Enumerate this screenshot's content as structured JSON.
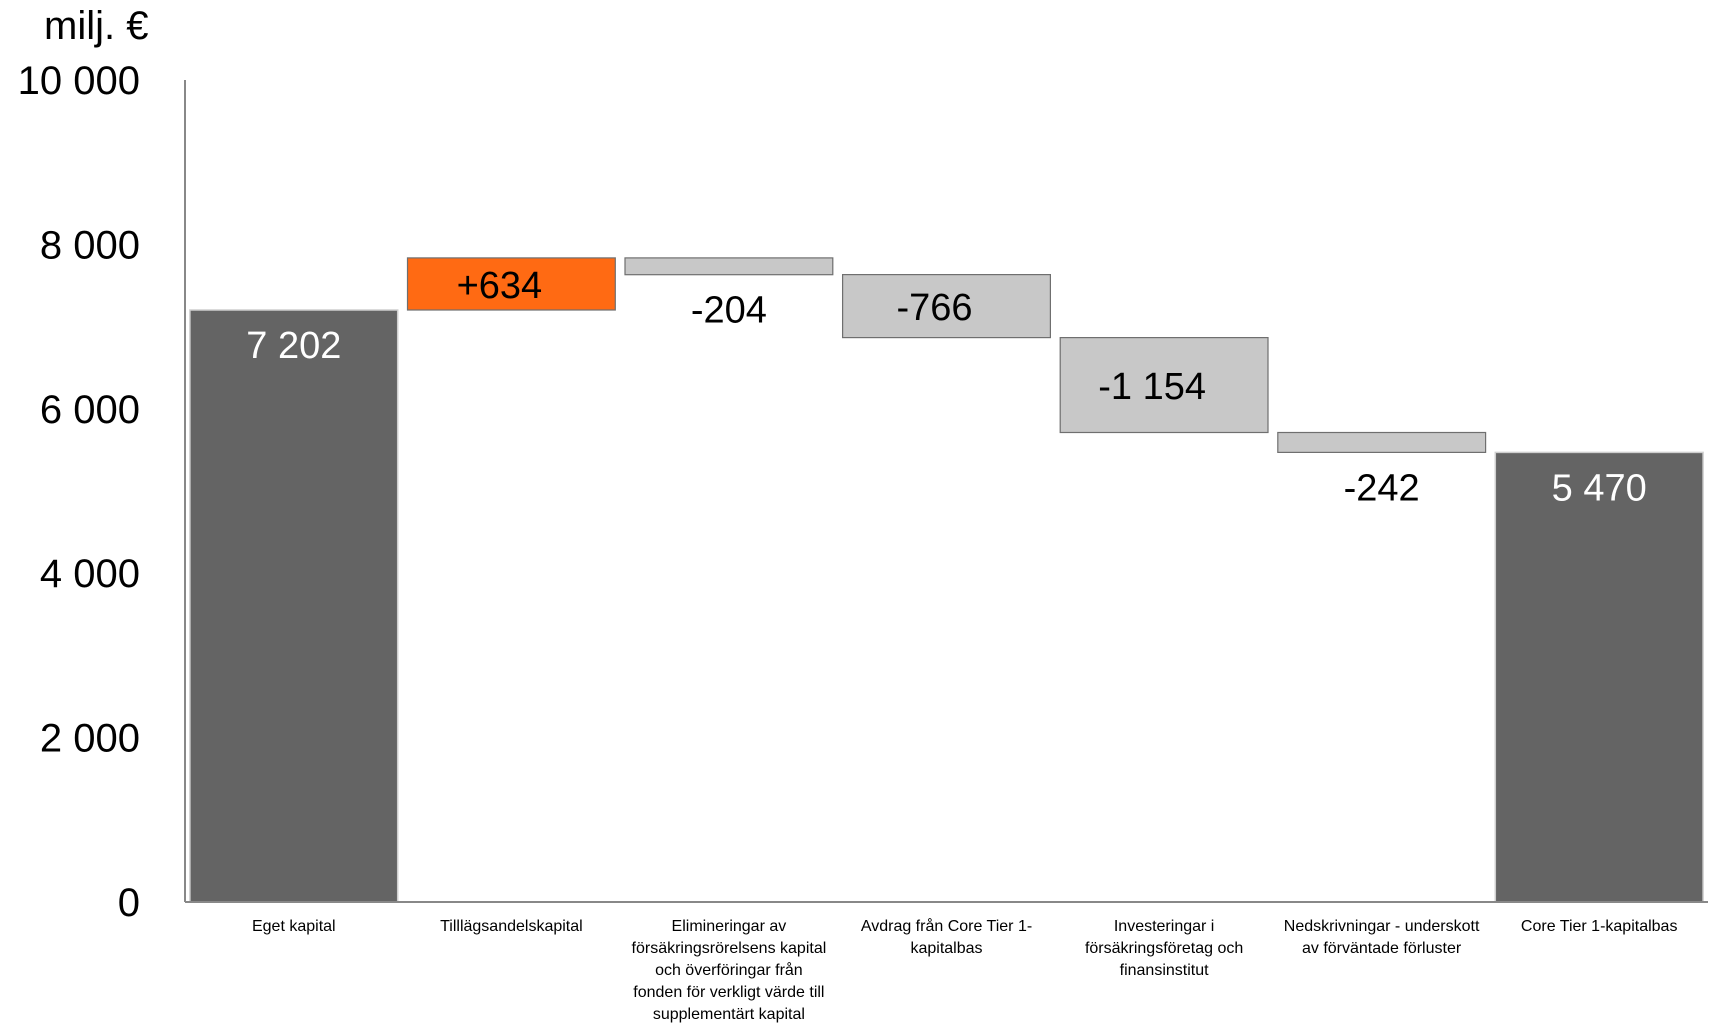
{
  "chart_data": {
    "type": "bar",
    "subtype": "waterfall",
    "ylabel": "milj. €",
    "ylim": [
      0,
      10000
    ],
    "y_ticks": [
      0,
      2000,
      4000,
      6000,
      8000,
      10000
    ],
    "y_tick_labels": [
      "0",
      "2 000",
      "4 000",
      "6 000",
      "8 000",
      "10 000"
    ],
    "grid": false,
    "legend": "none",
    "categories": [
      "Eget kapital",
      "Tilllägsandelskapital",
      "Elimineringar av försäkringsrörelsens kapital och överföringar från fonden för verkligt värde till supplementärt kapital",
      "Avdrag från Core Tier 1-kapitalbas",
      "Investeringar i försäkringsföretag och finansinstitut",
      "Nedskrivningar - underskott av förväntade förluster",
      "Core Tier 1-kapitalbas"
    ],
    "values": [
      7202,
      634,
      -204,
      -766,
      -1154,
      -242,
      5470
    ],
    "bar_kinds": [
      "total",
      "increase",
      "decrease",
      "decrease",
      "decrease",
      "decrease",
      "total"
    ],
    "data_labels": [
      "7 202",
      "+634",
      "-204",
      "-766",
      "-1 154",
      "-242",
      "5 470"
    ]
  },
  "colors": {
    "total": "#646464",
    "increase": "#ff6a13",
    "decrease": "#c8c8c8",
    "axis": "#888888",
    "label_on_total": "#ffffff",
    "label_default": "#000000"
  }
}
